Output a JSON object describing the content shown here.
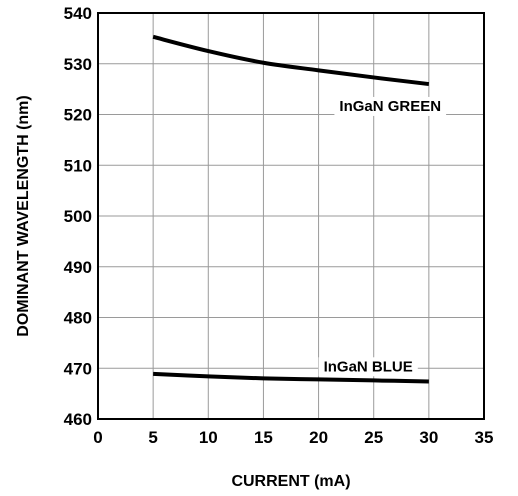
{
  "chart_data": {
    "type": "line",
    "xlabel": "CURRENT (mA)",
    "ylabel": "DOMINANT WAVELENGTH (nm)",
    "xlim": [
      0,
      35
    ],
    "ylim": [
      460,
      540
    ],
    "xticks": [
      0,
      5,
      10,
      15,
      20,
      25,
      30,
      35
    ],
    "yticks": [
      460,
      470,
      480,
      490,
      500,
      510,
      520,
      530,
      540
    ],
    "grid": true,
    "series": [
      {
        "name": "InGaN GREEN",
        "color": "#000000",
        "x": [
          5,
          10,
          15,
          20,
          25,
          30
        ],
        "y": [
          535.3,
          532.5,
          530.2,
          528.7,
          527.3,
          526.0
        ]
      },
      {
        "name": "InGaN BLUE",
        "color": "#000000",
        "x": [
          5,
          10,
          15,
          20,
          25,
          30
        ],
        "y": [
          468.9,
          468.4,
          468.0,
          467.8,
          467.6,
          467.4
        ]
      }
    ]
  }
}
